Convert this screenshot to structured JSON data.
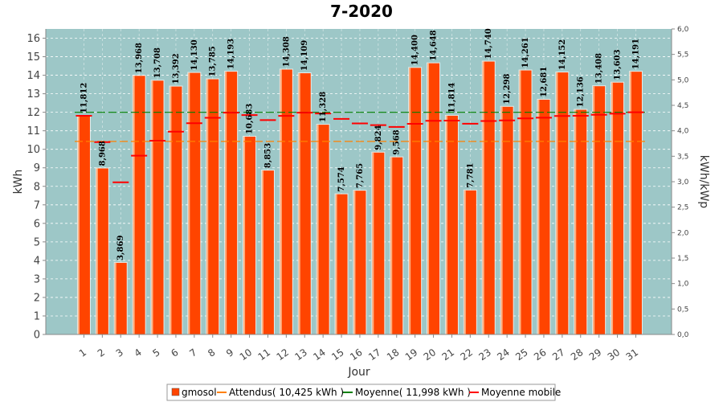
{
  "chart_data": {
    "type": "bar",
    "title": "7-2020",
    "xlabel": "Jour",
    "ylabel": "kWh",
    "y2label": "kWh/kWp",
    "ylim": [
      0,
      16.5
    ],
    "y2lim": [
      0,
      6.0
    ],
    "grid": true,
    "legend_position": "bottom",
    "colors": {
      "plot_bg": "#9dc7c7",
      "bar": "#ff4400",
      "attendus": "#ff8000",
      "moyenne": "#008000",
      "mobile": "#ff0000"
    },
    "yticks": [
      0,
      1,
      2,
      3,
      4,
      5,
      6,
      7,
      8,
      9,
      10,
      11,
      12,
      13,
      14,
      15,
      16
    ],
    "y2ticks": [
      "0,0",
      "0,5",
      "1,0",
      "1,5",
      "2,0",
      "2,5",
      "3,0",
      "3,5",
      "4,0",
      "4,5",
      "5,0",
      "5,5",
      "6,0"
    ],
    "categories": [
      "1",
      "2",
      "3",
      "4",
      "5",
      "6",
      "7",
      "8",
      "9",
      "10",
      "11",
      "12",
      "13",
      "14",
      "15",
      "16",
      "17",
      "18",
      "19",
      "20",
      "21",
      "22",
      "23",
      "24",
      "25",
      "26",
      "27",
      "28",
      "29",
      "30",
      "31"
    ],
    "series": [
      {
        "name": "gmosol",
        "values": [
          11.812,
          8.968,
          3.869,
          13.968,
          13.708,
          13.392,
          14.13,
          13.785,
          14.193,
          10.683,
          8.853,
          14.308,
          14.109,
          11.328,
          7.574,
          7.765,
          9.824,
          9.568,
          14.4,
          14.648,
          11.814,
          7.781,
          14.74,
          12.298,
          14.261,
          12.681,
          14.152,
          12.136,
          13.408,
          13.603,
          14.191
        ],
        "labels": [
          "11,812",
          "8,968",
          "3,869",
          "13,968",
          "13,708",
          "13,392",
          "14,130",
          "13,785",
          "14,193",
          "10,683",
          "8,853",
          "14,308",
          "14,109",
          "11,328",
          "7,574",
          "7,765",
          "9,824",
          "9,568",
          "14,400",
          "14,648",
          "11,814",
          "7,781",
          "14,740",
          "12,298",
          "14,261",
          "12,681",
          "14,152",
          "12,136",
          "13,408",
          "13,603",
          "14,191"
        ]
      },
      {
        "name": "Attendus( 10,425 kWh )",
        "value": 10.425
      },
      {
        "name": "Moyenne( 11,998 kWh )",
        "value": 11.998
      },
      {
        "name": "Moyenne mobile",
        "values": [
          11.812,
          10.39,
          8.216,
          9.654,
          10.465,
          10.953,
          11.407,
          11.704,
          11.981,
          11.851,
          11.578,
          11.805,
          11.98,
          11.933,
          11.642,
          11.399,
          11.306,
          11.209,
          11.376,
          11.539,
          11.552,
          11.38,
          11.526,
          11.559,
          11.667,
          11.706,
          11.797,
          11.809,
          11.866,
          11.925,
          11.998
        ]
      }
    ]
  }
}
